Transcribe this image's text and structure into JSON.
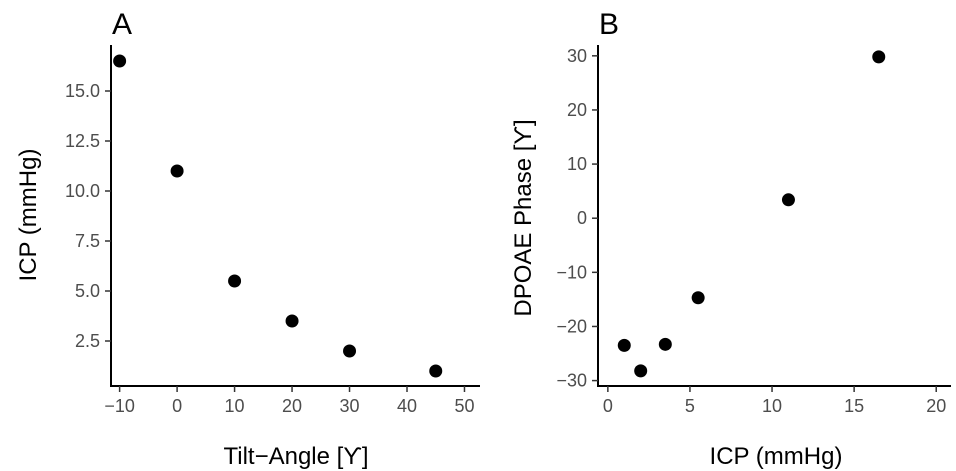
{
  "chart_data": [
    {
      "type": "scatter",
      "panel_label": "A",
      "xlabel": "Tilt−Angle [ϒ]",
      "ylabel": "ICP (mmHg)",
      "xlim": [
        -11.5,
        52.7
      ],
      "ylim": [
        0.25,
        17.3
      ],
      "xticks": [
        -10,
        0,
        10,
        20,
        30,
        40,
        50
      ],
      "xtick_labels": [
        "−10",
        "0",
        "10",
        "20",
        "30",
        "40",
        "50"
      ],
      "yticks": [
        2.5,
        5.0,
        7.5,
        10.0,
        12.5,
        15.0
      ],
      "ytick_labels": [
        "2.5",
        "5.0",
        "7.5",
        "10.0",
        "12.5",
        "15.0"
      ],
      "x": [
        -10,
        0,
        10,
        20,
        30,
        45
      ],
      "y": [
        16.5,
        11.0,
        5.5,
        3.5,
        2.0,
        1.0
      ],
      "grid": false,
      "point_color": "#000000"
    },
    {
      "type": "scatter",
      "panel_label": "B",
      "xlabel": "ICP (mmHg)",
      "ylabel": "DPOAE Phase [ϒ]",
      "xlim": [
        -0.6,
        20.9
      ],
      "ylim": [
        -31.0,
        32.0
      ],
      "xticks": [
        0,
        5,
        10,
        15,
        20
      ],
      "xtick_labels": [
        "0",
        "5",
        "10",
        "15",
        "20"
      ],
      "yticks": [
        -30,
        -20,
        -10,
        0,
        10,
        20,
        30
      ],
      "ytick_labels": [
        "−30",
        "−20",
        "−10",
        "0",
        "10",
        "20",
        "30"
      ],
      "x": [
        1.0,
        2.0,
        3.5,
        5.5,
        11.0,
        16.5
      ],
      "y": [
        -23.5,
        -28.2,
        -23.3,
        -14.7,
        3.4,
        29.8
      ],
      "grid": false,
      "point_color": "#000000"
    }
  ]
}
